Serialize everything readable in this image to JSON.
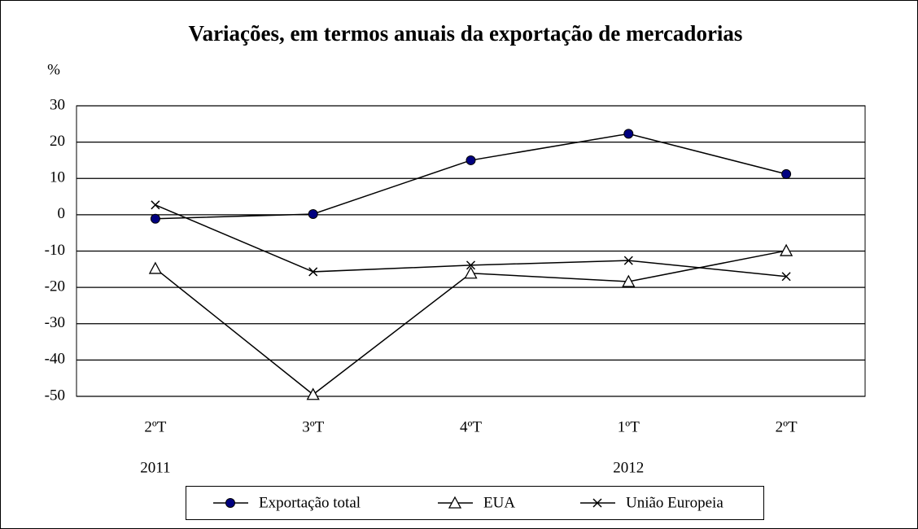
{
  "chart_data": {
    "type": "line",
    "title": "Variações, em termos anuais da exportação de mercadorias",
    "y_label": "%",
    "categories": [
      "2ºT",
      "3ºT",
      "4ºT",
      "1ºT",
      "2ºT"
    ],
    "year_labels": [
      "2011",
      null,
      null,
      "2012",
      null
    ],
    "series": [
      {
        "name": "Exportação total",
        "color": "#000000",
        "marker": "circle",
        "values": [
          -1.1,
          0.2,
          15.0,
          22.3,
          11.2
        ]
      },
      {
        "name": "EUA",
        "color": "#000000",
        "marker": "triangle",
        "values": [
          -14.8,
          -49.5,
          -16.1,
          -18.4,
          -9.9
        ]
      },
      {
        "name": "União Europeia",
        "color": "#000000",
        "marker": "x",
        "values": [
          2.7,
          -15.7,
          -13.9,
          -12.6,
          -17.0
        ]
      }
    ],
    "ylim": [
      -50,
      30
    ],
    "yticks": [
      -50,
      -40,
      -30,
      -20,
      -10,
      0,
      10,
      20,
      30
    ],
    "grid": true
  }
}
